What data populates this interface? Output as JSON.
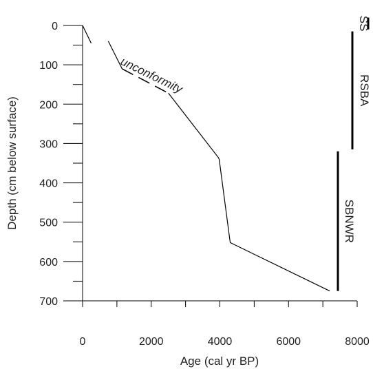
{
  "chart_data": {
    "type": "line",
    "xlabel": "Age (cal yr BP)",
    "ylabel": "Depth (cm below surface)",
    "xlim": [
      0,
      8000
    ],
    "ylim": [
      0,
      700
    ],
    "y_inverted": true,
    "x_ticks": [
      0,
      2000,
      4000,
      6000,
      8000
    ],
    "x_tick_labels": [
      "0",
      "2000",
      "4000",
      "6000",
      "8000"
    ],
    "x_minor_ticks": [
      1000,
      3000,
      5000,
      7000
    ],
    "y_ticks": [
      0,
      100,
      200,
      300,
      400,
      500,
      600,
      700
    ],
    "y_tick_labels": [
      "0",
      "100",
      "200",
      "300",
      "400",
      "500",
      "600",
      "700"
    ],
    "y_minor_ticks": [
      50,
      150,
      250,
      350,
      450,
      550,
      650
    ],
    "series": [
      {
        "style": "solid",
        "x": [
          0,
          250
        ],
        "y": [
          0,
          45
        ]
      },
      {
        "style": "solid",
        "x": [
          750,
          1150
        ],
        "y": [
          40,
          110
        ]
      },
      {
        "style": "dashed",
        "x": [
          1150,
          2500
        ],
        "y": [
          110,
          172
        ]
      },
      {
        "style": "solid",
        "x": [
          2500,
          3950,
          3980,
          4300,
          7200
        ],
        "y": [
          172,
          335,
          340,
          552,
          675
        ]
      }
    ],
    "annotations": [
      {
        "text": "unconformity",
        "x": 1100,
        "y": 115
      }
    ],
    "zones": [
      {
        "label": "SS",
        "y_range": [
          -20,
          10
        ]
      },
      {
        "label": "RSBA",
        "y_range": [
          15,
          315
        ]
      },
      {
        "label": "SBNWR",
        "y_range": [
          320,
          675
        ]
      }
    ],
    "grid": false,
    "color": "#000000"
  }
}
